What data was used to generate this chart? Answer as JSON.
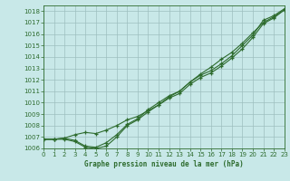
{
  "title": "Graphe pression niveau de la mer (hPa)",
  "xlim": [
    0,
    23
  ],
  "ylim": [
    1006.0,
    1018.5
  ],
  "yticks": [
    1006,
    1007,
    1008,
    1009,
    1010,
    1011,
    1012,
    1013,
    1014,
    1015,
    1016,
    1017,
    1018
  ],
  "xticks": [
    0,
    1,
    2,
    3,
    4,
    5,
    6,
    7,
    8,
    9,
    10,
    11,
    12,
    13,
    14,
    15,
    16,
    17,
    18,
    19,
    20,
    21,
    22,
    23
  ],
  "bg_color": "#c8e8e8",
  "line_color": "#2d6b2d",
  "grid_color": "#9dbfbf",
  "curves": [
    [
      1006.8,
      1006.8,
      1006.8,
      1006.6,
      1006.1,
      1006.0,
      1006.2,
      1007.0,
      1008.0,
      1008.5,
      1009.2,
      1009.8,
      1010.4,
      1010.8,
      1011.6,
      1012.2,
      1012.6,
      1013.2,
      1013.9,
      1014.7,
      1015.7,
      1016.9,
      1017.4,
      1018.1
    ],
    [
      1006.8,
      1006.8,
      1006.9,
      1007.2,
      1007.4,
      1007.3,
      1007.6,
      1008.0,
      1008.5,
      1008.8,
      1009.3,
      1009.8,
      1010.5,
      1011.0,
      1011.8,
      1012.5,
      1013.1,
      1013.8,
      1014.4,
      1015.2,
      1016.1,
      1017.0,
      1017.5,
      1018.1
    ],
    [
      1006.8,
      1006.8,
      1006.9,
      1006.7,
      1006.2,
      1006.1,
      1006.5,
      1007.2,
      1008.1,
      1008.6,
      1009.4,
      1010.0,
      1010.6,
      1011.0,
      1011.8,
      1012.4,
      1012.8,
      1013.4,
      1014.1,
      1015.0,
      1015.9,
      1017.2,
      1017.6,
      1018.2
    ]
  ],
  "marker": "+"
}
